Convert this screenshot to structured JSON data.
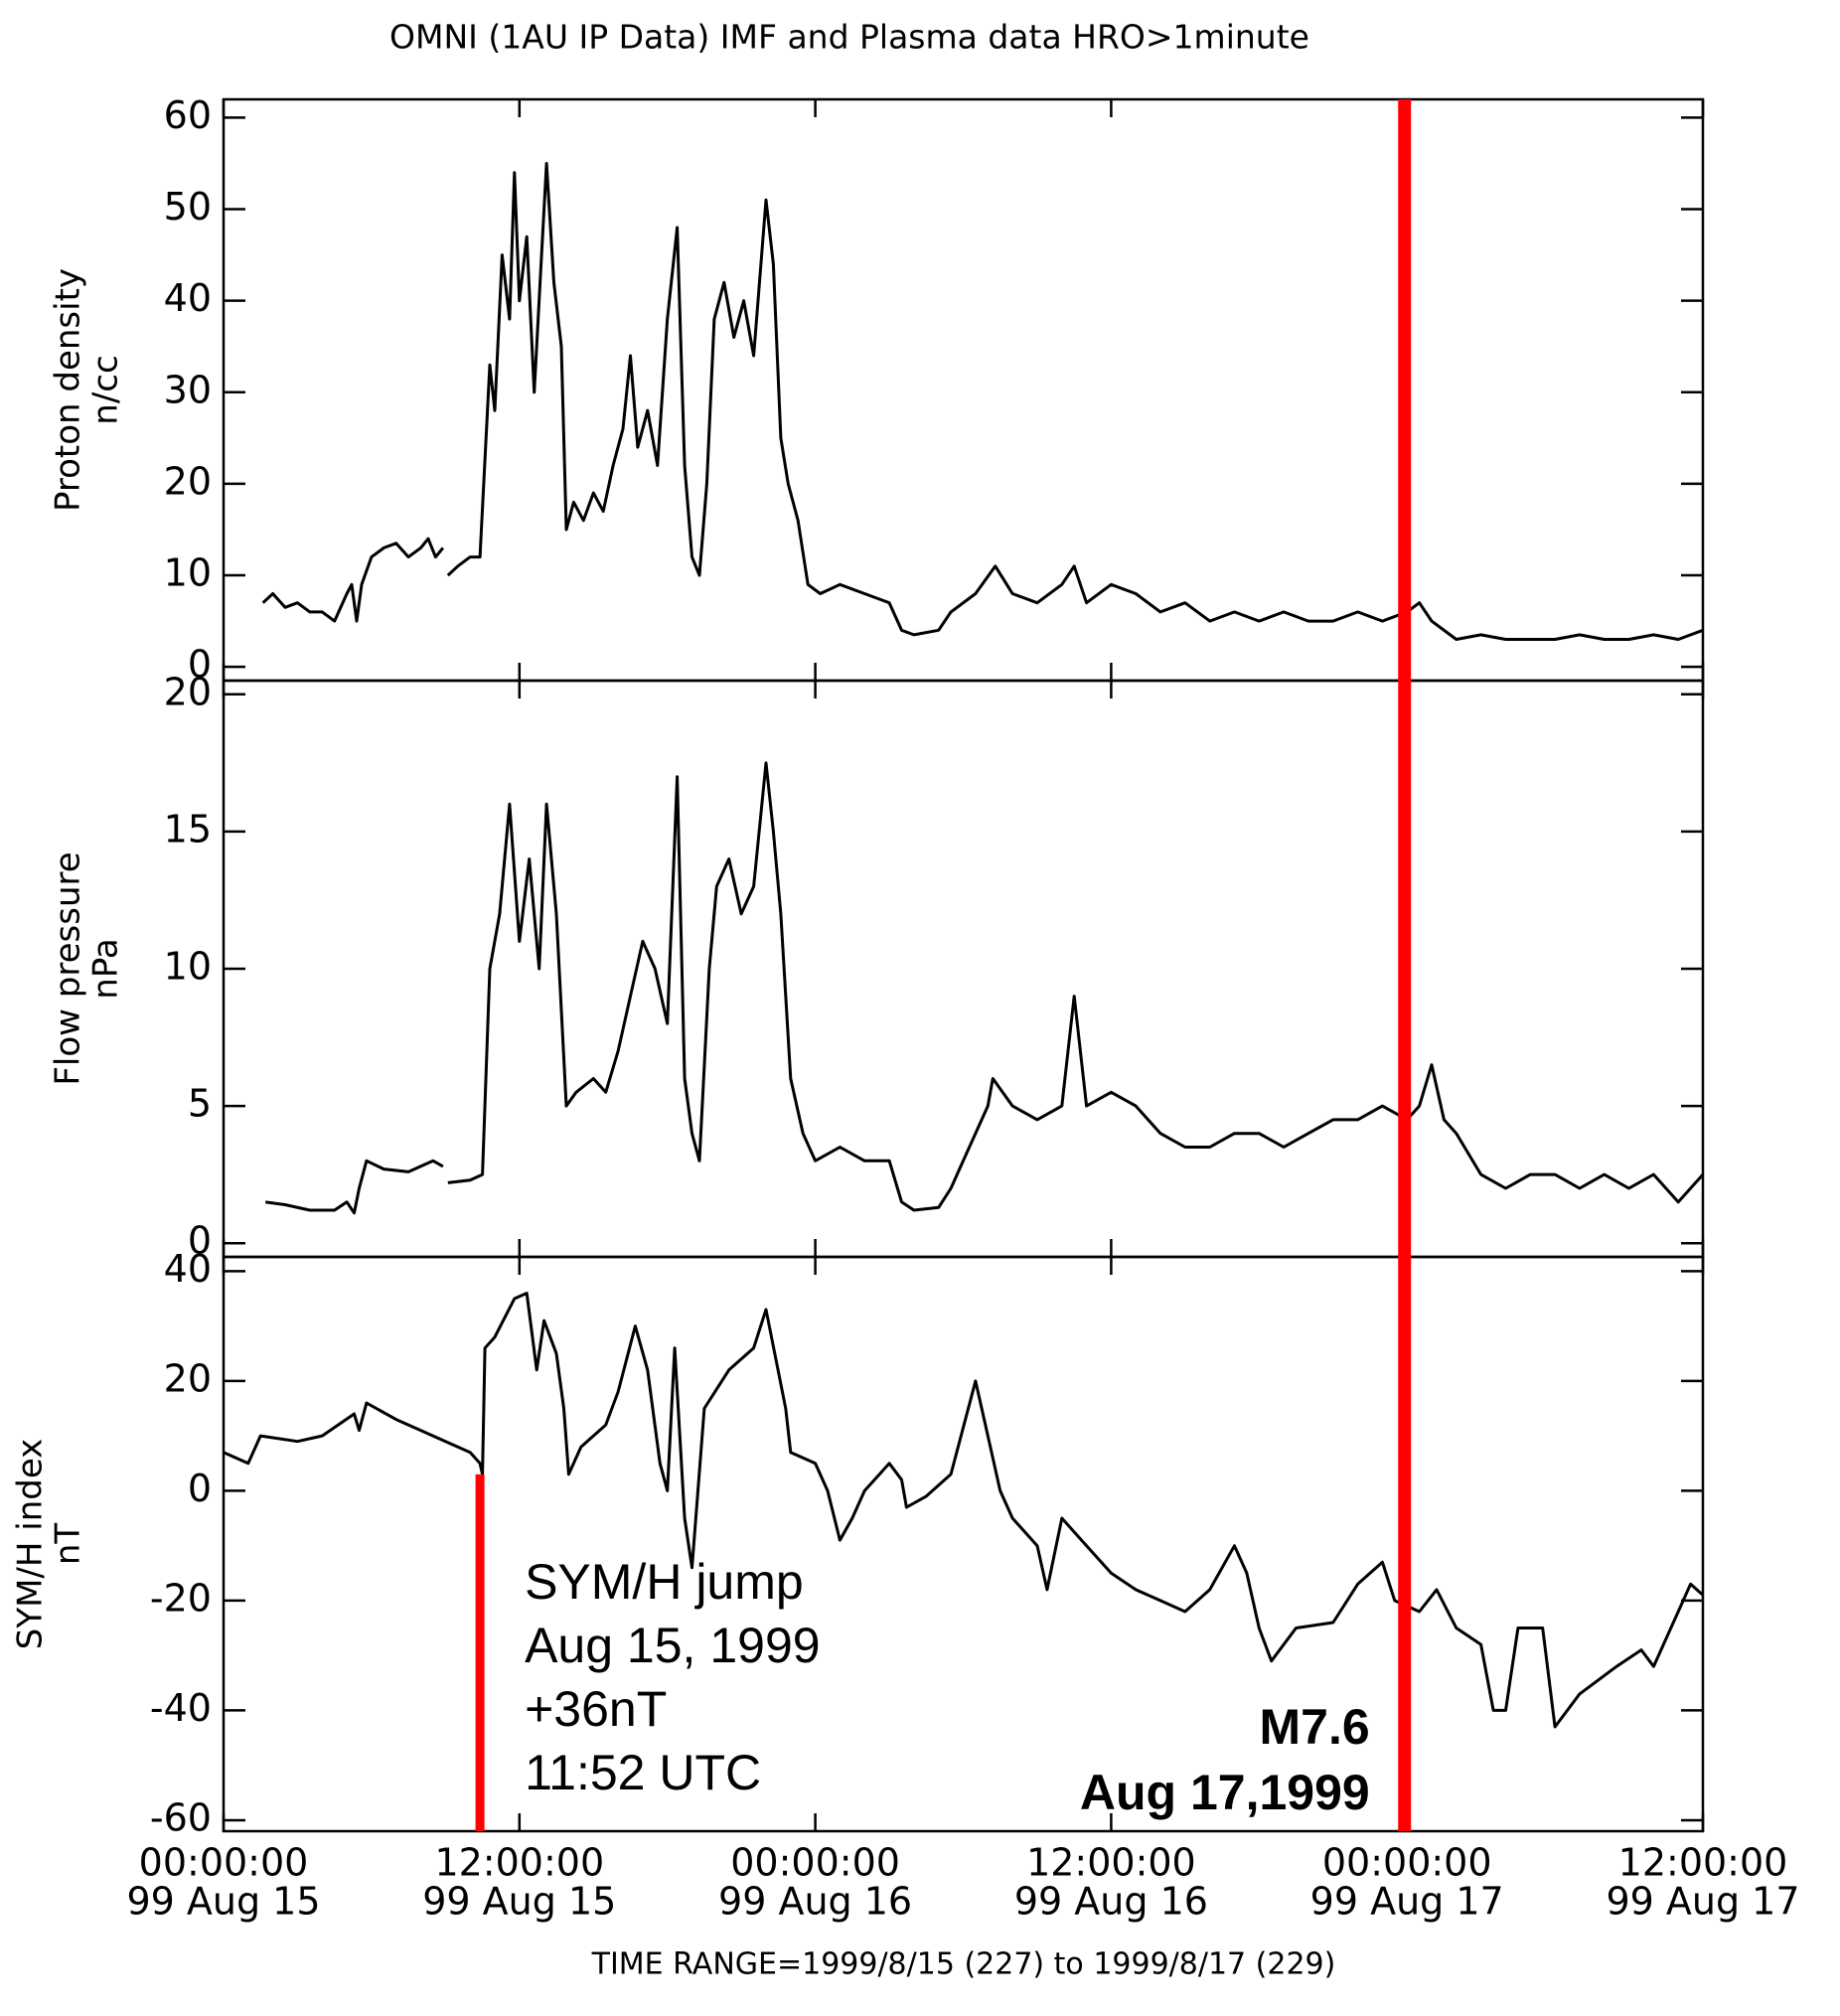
{
  "chart_data": [
    {
      "type": "line",
      "title": "OMNI (1AU IP Data)  IMF and Plasma data  HRO>1minute",
      "ylabel": "Proton density",
      "yunit": "n/cc",
      "color": "#000000",
      "xlim": [
        0,
        60
      ],
      "ylim": [
        -1.5,
        62
      ],
      "yticks": [
        0,
        10,
        20,
        30,
        40,
        50,
        60
      ],
      "x": [
        1.6,
        2,
        2.5,
        3,
        3.5,
        4,
        4.5,
        5,
        5.2,
        5.4,
        5.6,
        6,
        6.5,
        7,
        7.5,
        8,
        8.3,
        8.6,
        8.9,
        9,
        9.1,
        9.5,
        10,
        10.4,
        10.8,
        11,
        11.3,
        11.6,
        11.8,
        12,
        12.3,
        12.6,
        12.9,
        13.1,
        13.4,
        13.7,
        13.9,
        14.2,
        14.6,
        15,
        15.4,
        15.8,
        16.2,
        16.5,
        16.8,
        17.2,
        17.6,
        18,
        18.4,
        18.7,
        19,
        19.3,
        19.6,
        19.9,
        20.3,
        20.7,
        21.1,
        21.5,
        22,
        22.3,
        22.6,
        22.9,
        23.3,
        23.7,
        24.2,
        25,
        26,
        27,
        27.5,
        28,
        29,
        29.5,
        30.5,
        31.3,
        32,
        33,
        34,
        34.5,
        35,
        36,
        37,
        38,
        39,
        40,
        41,
        42,
        43,
        44,
        45,
        46,
        47,
        48,
        48.5,
        49,
        50,
        51,
        52,
        53,
        54,
        55,
        56,
        57,
        58,
        59,
        60
      ],
      "values": [
        7,
        8,
        6.5,
        7,
        6,
        6,
        5,
        8,
        9,
        5,
        9,
        12,
        13,
        13.5,
        12,
        13,
        14,
        12,
        13,
        null,
        10,
        11,
        12,
        12,
        33,
        28,
        45,
        38,
        54,
        40,
        47,
        30,
        45,
        55,
        42,
        35,
        15,
        18,
        16,
        19,
        17,
        22,
        26,
        34,
        24,
        28,
        22,
        38,
        48,
        22,
        12,
        10,
        20,
        38,
        42,
        36,
        40,
        34,
        51,
        44,
        25,
        20,
        16,
        9,
        8,
        9,
        8,
        7,
        4,
        3.5,
        4,
        6,
        8,
        11,
        8,
        7,
        9,
        11,
        7,
        9,
        8,
        6,
        7,
        5,
        6,
        5,
        6,
        5,
        5,
        6,
        5,
        6,
        7,
        5,
        3,
        3.5,
        3,
        3,
        3,
        3.5,
        3,
        3,
        3.5,
        3,
        4
      ]
    },
    {
      "type": "line",
      "ylabel": "Flow pressure",
      "yunit": "nPa",
      "color": "#000000",
      "xlim": [
        0,
        60
      ],
      "ylim": [
        -0.5,
        20.5
      ],
      "yticks": [
        0,
        5,
        10,
        15,
        20
      ],
      "x": [
        1.7,
        2.5,
        3.5,
        4.5,
        5,
        5.3,
        5.5,
        5.8,
        6.5,
        7.5,
        8.5,
        8.9,
        9,
        9.1,
        10,
        10.5,
        10.8,
        11.2,
        11.6,
        12,
        12.4,
        12.8,
        13.1,
        13.5,
        13.9,
        14.3,
        15,
        15.5,
        16,
        16.5,
        17,
        17.5,
        18,
        18.4,
        18.7,
        19,
        19.3,
        19.7,
        20,
        20.5,
        21,
        21.5,
        22,
        22.3,
        22.6,
        23,
        23.5,
        24,
        25,
        26,
        27,
        27.5,
        28,
        29,
        29.5,
        30,
        31,
        31.2,
        32,
        33,
        34,
        34.5,
        35,
        36,
        37,
        38,
        39,
        40,
        41,
        42,
        43,
        44,
        45,
        46,
        47,
        48,
        48.5,
        49,
        49.5,
        50,
        51,
        52,
        53,
        54,
        55,
        56,
        57,
        58,
        59,
        60
      ],
      "values": [
        1.5,
        1.4,
        1.2,
        1.2,
        1.5,
        1.1,
        2,
        3,
        2.7,
        2.6,
        3,
        2.8,
        null,
        2.2,
        2.3,
        2.5,
        10,
        12,
        16,
        11,
        14,
        10,
        16,
        12,
        5,
        5.5,
        6,
        5.5,
        7,
        9,
        11,
        10,
        8,
        17,
        6,
        4,
        3,
        10,
        13,
        14,
        12,
        13,
        17.5,
        15,
        12,
        6,
        4,
        3,
        3.5,
        3,
        3,
        1.5,
        1.2,
        1.3,
        2,
        3,
        5,
        6,
        5,
        4.5,
        5,
        9,
        5,
        5.5,
        5,
        4,
        3.5,
        3.5,
        4,
        4,
        3.5,
        4,
        4.5,
        4.5,
        5,
        4.5,
        5,
        6.5,
        4.5,
        4,
        2.5,
        2,
        2.5,
        2.5,
        2,
        2.5,
        2,
        2.5,
        1.5,
        2.5
      ]
    },
    {
      "type": "line",
      "ylabel": "SYM/H index",
      "yunit": "nT",
      "color": "#000000",
      "xlabel": "TIME RANGE=1999/8/15 (227) to 1999/8/17 (229)",
      "xlim": [
        0,
        60
      ],
      "ylim": [
        -62,
        42.6
      ],
      "yticks": [
        -60,
        -40,
        -20,
        0,
        20,
        40
      ],
      "xticks": [
        {
          "value": 0,
          "label": "00:00:00",
          "date": "99 Aug 15"
        },
        {
          "value": 12,
          "label": "12:00:00",
          "date": "99 Aug 15"
        },
        {
          "value": 24,
          "label": "00:00:00",
          "date": "99 Aug 16"
        },
        {
          "value": 36,
          "label": "12:00:00",
          "date": "99 Aug 16"
        },
        {
          "value": 48,
          "label": "00:00:00",
          "date": "99 Aug 17"
        },
        {
          "value": 60,
          "label": "12:00:00",
          "date": "99 Aug 17"
        }
      ],
      "x": [
        0,
        1,
        1.5,
        3,
        4,
        5.3,
        5.5,
        5.8,
        7,
        8,
        9,
        10,
        10.4,
        10.5,
        10.6,
        11,
        11.8,
        12.3,
        12.7,
        13,
        13.5,
        13.8,
        14,
        14.5,
        15,
        15.5,
        16,
        16.7,
        17.2,
        17.7,
        18,
        18.3,
        18.7,
        19,
        19.5,
        20.5,
        21.5,
        22,
        22.8,
        23,
        24,
        24.5,
        25,
        25.5,
        26,
        27,
        27.5,
        27.7,
        28.5,
        29.5,
        30.5,
        31,
        31.5,
        32,
        33,
        33.4,
        34,
        35,
        36,
        37,
        38,
        39,
        40,
        41,
        41.5,
        42,
        42.5,
        43.5,
        45,
        46,
        47,
        47.5,
        48.5,
        49.2,
        50,
        51,
        51.5,
        52,
        52.5,
        53.5,
        54,
        55,
        56.5,
        57.5,
        58,
        59,
        59.5,
        60
      ],
      "values": [
        7,
        5,
        10,
        9,
        10,
        14,
        11,
        16,
        13,
        11,
        9,
        7,
        5,
        3,
        26,
        28,
        35,
        36,
        22,
        31,
        25,
        15,
        3,
        8,
        10,
        12,
        18,
        30,
        22,
        5,
        0,
        26,
        -5,
        -14,
        15,
        22,
        26,
        33,
        15,
        7,
        5,
        0,
        -9,
        -5,
        0,
        5,
        2,
        -3,
        -1,
        3,
        20,
        10,
        0,
        -5,
        -10,
        -18,
        -5,
        -10,
        -15,
        -18,
        -20,
        -22,
        -18,
        -10,
        -15,
        -25,
        -31,
        -25,
        -24,
        -17,
        -13,
        -20,
        -22,
        -18,
        -25,
        -28,
        -40,
        -40,
        -25,
        -25,
        -43,
        -37,
        -32,
        -29,
        -32,
        -22,
        -17,
        -19
      ],
      "annotations": [
        {
          "x": 10.4,
          "ymax": 3,
          "color": "#ff0000",
          "text": [
            "SYM/H jump",
            "Aug 15, 1999",
            "+36nT",
            "11:52 UTC"
          ]
        },
        {
          "x": 47.9,
          "color": "#ff0000",
          "text": [
            "M7.6",
            "Aug 17,1999"
          ]
        }
      ]
    }
  ]
}
